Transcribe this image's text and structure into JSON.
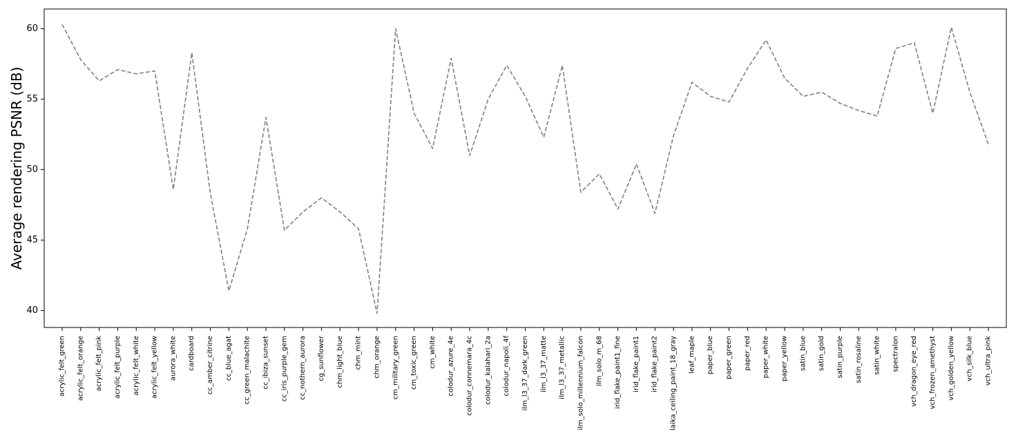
{
  "chart_data": {
    "type": "line",
    "title": "",
    "xlabel": "",
    "ylabel": "Average rendering PSNR (dB)",
    "ylim": [
      38.8,
      61.4
    ],
    "yticks": [
      40,
      45,
      50,
      55,
      60
    ],
    "grid": false,
    "legend": "none",
    "line_color": "#7f7f7f",
    "line_style": "dashed",
    "categories": [
      "acrylic_felt_green",
      "acrylic_felt_orange",
      "acrylic_felt_pink",
      "acrylic_felt_purple",
      "acrylic_felt_white",
      "acrylic_felt_yellow",
      "aurora_white",
      "cardboard",
      "cc_amber_citrine",
      "cc_blue_agat",
      "cc_green_malachite",
      "cc_ibiza_sunset",
      "cc_iris_purple_gem",
      "cc_nothern_aurora",
      "cg_sunflower",
      "chm_light_blue",
      "chm_mint",
      "chm_orange",
      "cm_military_green",
      "cm_toxic_green",
      "cm_white",
      "colodur_azure_4e",
      "colodur_connemara_4c",
      "colodur_kalahari_2a",
      "colodur_napoli_4f",
      "ilm_l3_37_dark_green",
      "ilm_l3_37_matte",
      "ilm_l3_37_metallic",
      "ilm_solo_millennium_falcon",
      "ilm_solo_m_68",
      "irid_flake_paint1_fine",
      "irid_flake_paint1",
      "irid_flake_paint2",
      "laika_ceiling_paint_18_gray",
      "leaf_maple",
      "paper_blue",
      "paper_green",
      "paper_red",
      "paper_white",
      "paper_yellow",
      "satin_blue",
      "satin_gold",
      "satin_purple",
      "satin_rosaline",
      "satin_white",
      "spectralon",
      "vch_dragon_eye_red",
      "vch_frozen_amethyst",
      "vch_golden_yellow",
      "vch_silk_blue",
      "vch_ultra_pink"
    ],
    "values": [
      60.3,
      57.8,
      56.3,
      57.1,
      56.8,
      57.0,
      48.6,
      58.3,
      48.3,
      41.4,
      45.8,
      53.7,
      45.7,
      47.0,
      48.0,
      47.0,
      45.8,
      39.8,
      60.0,
      54.0,
      51.5,
      57.9,
      51.0,
      55.0,
      57.4,
      55.2,
      52.3,
      57.4,
      48.4,
      49.7,
      47.2,
      50.4,
      46.9,
      52.4,
      56.2,
      55.2,
      54.8,
      57.2,
      59.2,
      56.5,
      55.2,
      55.5,
      54.7,
      54.2,
      53.8,
      58.6,
      59.0,
      54.0,
      60.1,
      55.5,
      51.8
    ]
  }
}
